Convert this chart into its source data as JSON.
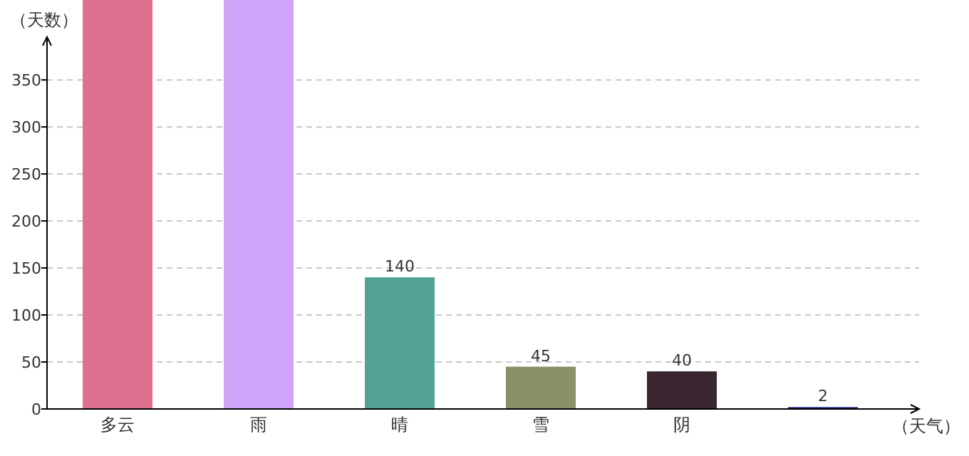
{
  "chart_data": {
    "type": "bar",
    "xlabel": "（天气）",
    "ylabel": "（天数）",
    "categories": [
      "多云",
      "雨",
      "晴",
      "雪",
      "阴",
      null
    ],
    "values": [
      435,
      435,
      140,
      45,
      40,
      2
    ],
    "value_labels": [
      null,
      null,
      "140",
      "45",
      "40",
      "2"
    ],
    "colors": [
      "#e07090",
      "#cfa3f7",
      "#52a296",
      "#8a9168",
      "#3a2630",
      "#1a237e"
    ],
    "ylim": [
      0,
      435
    ],
    "yticks": [
      0,
      50,
      100,
      150,
      200,
      250,
      300,
      350
    ],
    "grid": "y"
  }
}
